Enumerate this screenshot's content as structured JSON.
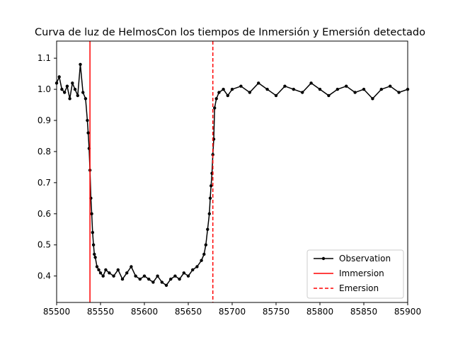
{
  "chart_data": {
    "type": "line",
    "title": "Curva de luz de HelmosCon los tiempos de Inmersión y Emersión detectado",
    "xlabel": "",
    "ylabel": "",
    "xlim": [
      85500,
      85900
    ],
    "ylim": [
      0.315,
      1.155
    ],
    "xticks": [
      85500,
      85550,
      85600,
      85650,
      85700,
      85750,
      85800,
      85850,
      85900
    ],
    "yticks": [
      0.4,
      0.5,
      0.6,
      0.7,
      0.8,
      0.9,
      1.0,
      1.1
    ],
    "xtick_labels": [
      "85500",
      "85550",
      "85600",
      "85650",
      "85700",
      "85750",
      "85800",
      "85850",
      "85900"
    ],
    "ytick_labels": [
      "0.4",
      "0.5",
      "0.6",
      "0.7",
      "0.8",
      "0.9",
      "1.0",
      "1.1"
    ],
    "grid": false,
    "legend_position": "lower-right",
    "series": [
      {
        "name": "Observation",
        "kind": "line-with-markers",
        "color": "#000000",
        "x": [
          85500,
          85503,
          85506,
          85509,
          85512,
          85515,
          85518,
          85521,
          85524,
          85527,
          85530,
          85533,
          85535,
          85536,
          85537,
          85538,
          85539,
          85540,
          85541,
          85542,
          85543,
          85544,
          85546,
          85548,
          85550,
          85553,
          85556,
          85560,
          85565,
          85570,
          85575,
          85580,
          85585,
          85590,
          85595,
          85600,
          85605,
          85610,
          85615,
          85620,
          85625,
          85630,
          85635,
          85640,
          85645,
          85650,
          85655,
          85660,
          85665,
          85668,
          85670,
          85672,
          85674,
          85675,
          85676,
          85677,
          85678,
          85679,
          85680,
          85682,
          85685,
          85690,
          85695,
          85700,
          85710,
          85720,
          85730,
          85740,
          85750,
          85760,
          85770,
          85780,
          85790,
          85800,
          85810,
          85820,
          85830,
          85840,
          85850,
          85860,
          85870,
          85880,
          85890,
          85900
        ],
        "y": [
          1.02,
          1.04,
          1.0,
          0.99,
          1.01,
          0.97,
          1.02,
          1.0,
          0.98,
          1.08,
          0.99,
          0.97,
          0.9,
          0.86,
          0.81,
          0.74,
          0.65,
          0.6,
          0.54,
          0.5,
          0.47,
          0.46,
          0.43,
          0.42,
          0.41,
          0.4,
          0.42,
          0.41,
          0.4,
          0.42,
          0.39,
          0.41,
          0.43,
          0.4,
          0.39,
          0.4,
          0.39,
          0.38,
          0.4,
          0.38,
          0.37,
          0.39,
          0.4,
          0.39,
          0.41,
          0.4,
          0.42,
          0.43,
          0.45,
          0.47,
          0.5,
          0.55,
          0.6,
          0.65,
          0.69,
          0.73,
          0.79,
          0.84,
          0.94,
          0.97,
          0.99,
          1.0,
          0.98,
          1.0,
          1.01,
          0.99,
          1.02,
          1.0,
          0.98,
          1.01,
          1.0,
          0.99,
          1.02,
          1.0,
          0.98,
          1.0,
          1.01,
          0.99,
          1.0,
          0.97,
          1.0,
          1.01,
          0.99,
          1.0
        ]
      },
      {
        "name": "Immersion",
        "kind": "vline",
        "style": "solid",
        "color": "#ff0000",
        "x": 85538
      },
      {
        "name": "Emersion",
        "kind": "vline",
        "style": "dashed",
        "color": "#ff0000",
        "x": 85678
      }
    ]
  }
}
